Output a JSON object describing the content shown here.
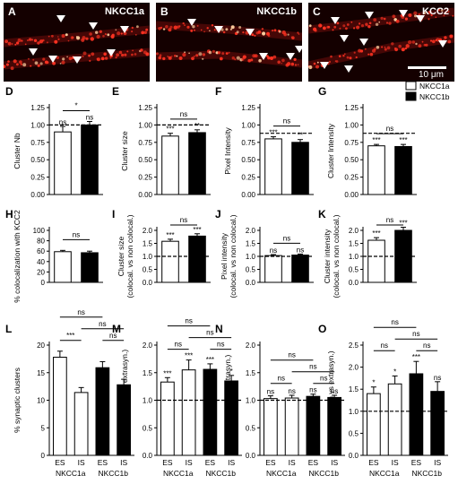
{
  "legend": {
    "items": [
      {
        "label": "NKCC1a",
        "fill": "#ffffff"
      },
      {
        "label": "NKCC1b",
        "fill": "#000000"
      }
    ]
  },
  "micrographs": [
    {
      "letter": "A",
      "title": "NKCC1a"
    },
    {
      "letter": "B",
      "title": "NKCC1b"
    },
    {
      "letter": "C",
      "title": "KCC2",
      "scale_label": "10 μm"
    }
  ],
  "colors": {
    "puncta": "#ff3322",
    "background": "#140000",
    "bar_open": "#ffffff",
    "bar_filled": "#000000"
  },
  "chart_data": [
    {
      "panel": "D",
      "type": "bar",
      "ylabel": "Cluster Nb",
      "ylim": [
        0,
        1.25
      ],
      "yticks": [
        0.0,
        0.25,
        0.5,
        0.75,
        1.0,
        1.25
      ],
      "reference_line": 1.0,
      "categories": [
        "NKCC1a",
        "NKCC1b"
      ],
      "values": [
        0.9,
        1.0
      ],
      "errors": [
        0.08,
        0.05
      ],
      "bar_labels": [
        "ns",
        "ns"
      ],
      "comparisons": [
        {
          "label": "*"
        }
      ]
    },
    {
      "panel": "E",
      "type": "bar",
      "ylabel": "Cluster size",
      "ylim": [
        0,
        1.25
      ],
      "yticks": [
        0.0,
        0.25,
        0.5,
        0.75,
        1.0,
        1.25
      ],
      "reference_line": 1.0,
      "categories": [
        "NKCC1a",
        "NKCC1b"
      ],
      "values": [
        0.84,
        0.89
      ],
      "errors": [
        0.04,
        0.04
      ],
      "bar_labels": [
        "***",
        "**"
      ],
      "comparisons": [
        {
          "label": "ns"
        }
      ]
    },
    {
      "panel": "F",
      "type": "bar",
      "ylabel": "Pixel Intensity",
      "ylim": [
        0,
        1.25
      ],
      "yticks": [
        0.0,
        0.25,
        0.5,
        0.75,
        1.0,
        1.25
      ],
      "reference_line": 0.88,
      "categories": [
        "NKCC1a",
        "NKCC1b"
      ],
      "values": [
        0.8,
        0.75
      ],
      "errors": [
        0.03,
        0.04
      ],
      "bar_labels": [
        "***",
        "**"
      ],
      "comparisons": [
        {
          "label": "ns"
        }
      ]
    },
    {
      "panel": "G",
      "type": "bar",
      "ylabel": "Cluster Intensity",
      "ylim": [
        0,
        1.25
      ],
      "yticks": [
        0.0,
        0.25,
        0.5,
        0.75,
        1.0,
        1.25
      ],
      "reference_line": 0.88,
      "categories": [
        "NKCC1a",
        "NKCC1b"
      ],
      "values": [
        0.7,
        0.69
      ],
      "errors": [
        0.02,
        0.03
      ],
      "bar_labels": [
        "***",
        "***"
      ],
      "comparisons": [
        {
          "label": "ns"
        }
      ]
    },
    {
      "panel": "H",
      "type": "bar",
      "ylabel": "% colocalization with KCC2",
      "ylim": [
        0,
        100
      ],
      "yticks": [
        0,
        20,
        40,
        60,
        80,
        100
      ],
      "categories": [
        "NKCC1a",
        "NKCC1b"
      ],
      "values": [
        59,
        57
      ],
      "errors": [
        2.5,
        3
      ],
      "bar_labels": [
        "",
        ""
      ],
      "comparisons": [
        {
          "label": "ns"
        }
      ]
    },
    {
      "panel": "I",
      "type": "bar",
      "ylabel": "Cluster size",
      "ylabel2": "(colocal. vs non colocal.)",
      "ylim": [
        0,
        2.0
      ],
      "yticks": [
        0.0,
        0.5,
        1.0,
        1.5,
        2.0
      ],
      "reference_line": 1.0,
      "categories": [
        "NKCC1a",
        "NKCC1b"
      ],
      "values": [
        1.58,
        1.78
      ],
      "errors": [
        0.08,
        0.09
      ],
      "bar_labels": [
        "***",
        "***"
      ],
      "comparisons": [
        {
          "label": "ns"
        }
      ]
    },
    {
      "panel": "J",
      "type": "bar",
      "ylabel": "Pixel intensity",
      "ylabel2": "(colocal. vs non colocal.)",
      "ylim": [
        0,
        2.0
      ],
      "yticks": [
        0.0,
        0.5,
        1.0,
        1.5,
        2.0
      ],
      "reference_line": 1.0,
      "categories": [
        "NKCC1a",
        "NKCC1b"
      ],
      "values": [
        1.03,
        1.05
      ],
      "errors": [
        0.04,
        0.04
      ],
      "bar_labels": [
        "ns",
        "ns"
      ],
      "comparisons": [
        {
          "label": "ns"
        }
      ]
    },
    {
      "panel": "K",
      "type": "bar",
      "ylabel": "Cluster intensity",
      "ylabel2": "(colocal. vs non colocal.)",
      "ylim": [
        0,
        2.0
      ],
      "yticks": [
        0.0,
        0.5,
        1.0,
        1.5,
        2.0
      ],
      "reference_line": 1.0,
      "categories": [
        "NKCC1a",
        "NKCC1b"
      ],
      "values": [
        1.62,
        2.0
      ],
      "errors": [
        0.1,
        0.12
      ],
      "bar_labels": [
        "***",
        "***"
      ],
      "comparisons": [
        {
          "label": "ns"
        }
      ]
    },
    {
      "panel": "L",
      "type": "bar",
      "ylabel": "% synaptic clusters",
      "ylim": [
        0,
        20
      ],
      "yticks": [
        0,
        5,
        10,
        15,
        20
      ],
      "categories": [
        "ES",
        "IS",
        "ES",
        "IS"
      ],
      "groups": [
        "NKCC1a",
        "NKCC1b"
      ],
      "values": [
        17.8,
        11.4,
        15.9,
        12.8
      ],
      "errors": [
        1.1,
        0.9,
        1.1,
        1.0
      ],
      "bar_labels": [
        "",
        "",
        "",
        ""
      ],
      "comparisons": [
        {
          "label": "***"
        },
        {
          "label": "ns"
        },
        {
          "label": "ns"
        },
        {
          "label": "ns"
        }
      ]
    },
    {
      "panel": "M",
      "type": "bar",
      "ylabel": "Cluster size (syn vs extrasyn.)",
      "ylim": [
        0,
        2.0
      ],
      "yticks": [
        0.0,
        0.5,
        1.0,
        1.5,
        2.0
      ],
      "reference_line": 1.0,
      "categories": [
        "ES",
        "IS",
        "ES",
        "IS"
      ],
      "groups": [
        "NKCC1a",
        "NKCC1b"
      ],
      "values": [
        1.33,
        1.55,
        1.56,
        1.35
      ],
      "errors": [
        0.08,
        0.18,
        0.1,
        0.1
      ],
      "bar_labels": [
        "***",
        "***",
        "***",
        "*"
      ],
      "comparisons": [
        {
          "label": "ns"
        },
        {
          "label": "ns"
        },
        {
          "label": "ns"
        },
        {
          "label": "ns"
        }
      ]
    },
    {
      "panel": "N",
      "type": "bar",
      "ylabel": "Pixel Int. (syn vs extrasyn.)",
      "ylim": [
        0,
        2.0
      ],
      "yticks": [
        0.0,
        0.5,
        1.0,
        1.5,
        2.0
      ],
      "reference_line": 1.0,
      "categories": [
        "ES",
        "IS",
        "ES",
        "IS"
      ],
      "groups": [
        "NKCC1a",
        "NKCC1b"
      ],
      "values": [
        1.03,
        1.04,
        1.07,
        1.05
      ],
      "errors": [
        0.05,
        0.05,
        0.04,
        0.04
      ],
      "bar_labels": [
        "ns",
        "ns",
        "ns",
        "ns"
      ],
      "comparisons": [
        {
          "label": "ns"
        },
        {
          "label": "ns"
        },
        {
          "label": "ns"
        },
        {
          "label": "ns"
        }
      ]
    },
    {
      "panel": "O",
      "type": "bar",
      "ylabel": "Cluster Int. (syn vs extrasyn.)",
      "ylim": [
        0,
        2.5
      ],
      "yticks": [
        0.0,
        0.5,
        1.0,
        1.5,
        2.0,
        2.5
      ],
      "reference_line": 1.0,
      "categories": [
        "ES",
        "IS",
        "ES",
        "IS"
      ],
      "groups": [
        "NKCC1a",
        "NKCC1b"
      ],
      "values": [
        1.4,
        1.62,
        1.85,
        1.45
      ],
      "errors": [
        0.15,
        0.18,
        0.28,
        0.22
      ],
      "bar_labels": [
        "*",
        "*",
        "***",
        "ns"
      ],
      "comparisons": [
        {
          "label": "ns"
        },
        {
          "label": "ns"
        },
        {
          "label": "ns"
        },
        {
          "label": "ns"
        }
      ]
    }
  ]
}
